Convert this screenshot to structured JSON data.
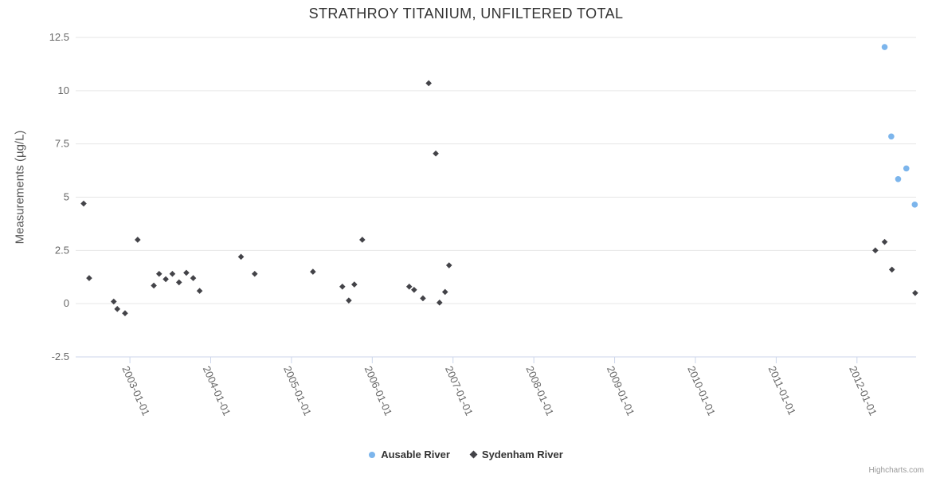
{
  "credits": "Highcharts.com",
  "chart_data": {
    "type": "scatter",
    "title": "STRATHROY TITANIUM, UNFILTERED TOTAL",
    "xlabel": "",
    "ylabel": "Measurements (µg/L)",
    "grid": "horizontal",
    "legend_position": "bottom-center",
    "x_axis": {
      "type": "datetime",
      "range": [
        "2002-05-01",
        "2012-09-25"
      ],
      "tick_labels": [
        "2003-01-01",
        "2004-01-01",
        "2005-01-01",
        "2006-01-01",
        "2007-01-01",
        "2008-01-01",
        "2009-01-01",
        "2010-01-01",
        "2011-01-01",
        "2012-01-01"
      ],
      "label_rotation_deg": 66
    },
    "y_axis": {
      "range": [
        -2.5,
        12.5
      ],
      "ticks": [
        -2.5,
        0,
        2.5,
        5,
        7.5,
        10,
        12.5
      ],
      "tick_labels": [
        "-2.5",
        "0",
        "2.5",
        "5",
        "7.5",
        "10",
        "12.5"
      ]
    },
    "series": [
      {
        "name": "Ausable River",
        "marker": "circle",
        "color": "#7cb5ec",
        "points": [
          [
            "2012-05-06",
            12.05
          ],
          [
            "2012-06-05",
            7.85
          ],
          [
            "2012-07-06",
            5.85
          ],
          [
            "2012-08-12",
            6.35
          ],
          [
            "2012-09-19",
            4.65
          ]
        ]
      },
      {
        "name": "Sydenham River",
        "marker": "diamond",
        "color": "#434348",
        "points": [
          [
            "2002-06-06",
            4.7
          ],
          [
            "2002-07-01",
            1.2
          ],
          [
            "2002-10-20",
            0.1
          ],
          [
            "2002-11-05",
            -0.25
          ],
          [
            "2002-12-10",
            -0.45
          ],
          [
            "2003-02-05",
            3.0
          ],
          [
            "2003-04-19",
            0.85
          ],
          [
            "2003-05-13",
            1.4
          ],
          [
            "2003-06-12",
            1.15
          ],
          [
            "2003-07-12",
            1.4
          ],
          [
            "2003-08-11",
            1.0
          ],
          [
            "2003-09-13",
            1.45
          ],
          [
            "2003-10-14",
            1.2
          ],
          [
            "2003-11-12",
            0.6
          ],
          [
            "2004-05-18",
            2.2
          ],
          [
            "2004-07-19",
            1.4
          ],
          [
            "2005-04-08",
            1.5
          ],
          [
            "2005-08-19",
            0.8
          ],
          [
            "2005-09-17",
            0.15
          ],
          [
            "2005-10-12",
            0.9
          ],
          [
            "2005-11-17",
            3.0
          ],
          [
            "2006-06-17",
            0.8
          ],
          [
            "2006-07-09",
            0.65
          ],
          [
            "2006-08-18",
            0.25
          ],
          [
            "2006-09-13",
            10.35
          ],
          [
            "2006-10-15",
            7.05
          ],
          [
            "2006-11-01",
            0.05
          ],
          [
            "2006-11-26",
            0.55
          ],
          [
            "2006-12-14",
            1.8
          ],
          [
            "2012-03-25",
            2.5
          ],
          [
            "2012-05-06",
            2.9
          ],
          [
            "2012-06-08",
            1.6
          ],
          [
            "2012-09-21",
            0.5
          ]
        ]
      }
    ]
  }
}
